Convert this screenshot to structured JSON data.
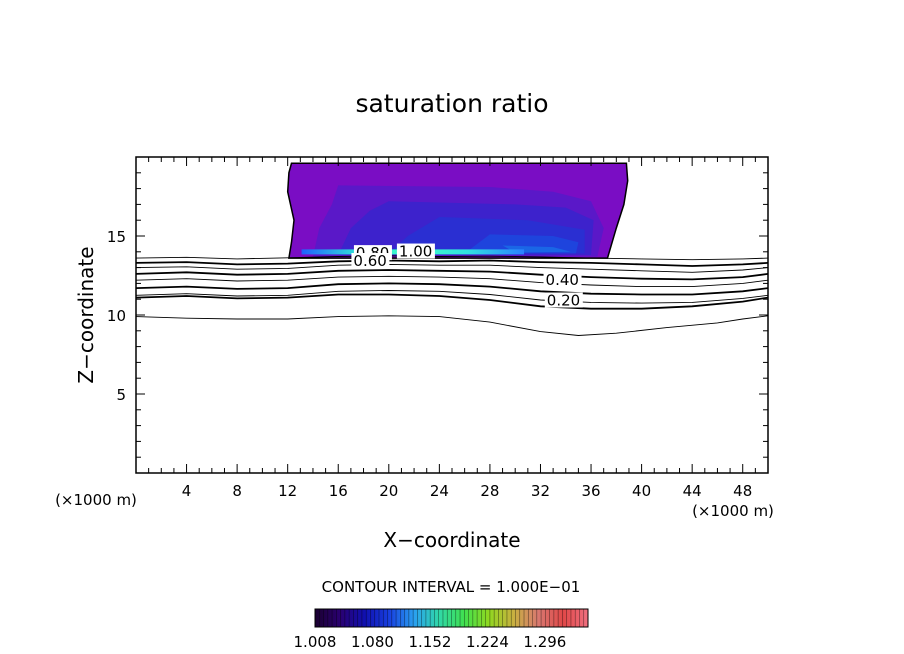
{
  "chart_data": {
    "type": "contour",
    "title": "saturation ratio",
    "xlabel": "X−coordinate",
    "ylabel": "Z−coordinate",
    "x_unit_label": "(×1000 m)",
    "y_unit_label": "(×1000 m)",
    "xlim": [
      0,
      50
    ],
    "ylim": [
      0,
      20
    ],
    "x_ticks": [
      4,
      8,
      12,
      16,
      20,
      24,
      28,
      32,
      36,
      40,
      44,
      48
    ],
    "y_ticks": [
      5,
      10,
      15
    ],
    "contour_interval_text": "CONTOUR INTERVAL = 1.000E−01",
    "contour_labels": [
      {
        "text": "1.00",
        "x": 20.8,
        "z": 13.7
      },
      {
        "text": "0.80",
        "x": 17.4,
        "z": 13.6
      },
      {
        "text": "0.60",
        "x": 17.2,
        "z": 13.1
      },
      {
        "text": "0.40",
        "x": 32.4,
        "z": 11.9
      },
      {
        "text": "0.20",
        "x": 32.5,
        "z": 10.6
      }
    ],
    "contour_lines": [
      {
        "level": 0.9,
        "bold": false,
        "points": [
          [
            0,
            13.6
          ],
          [
            4,
            13.65
          ],
          [
            8,
            13.55
          ],
          [
            12,
            13.62
          ],
          [
            16,
            13.7
          ],
          [
            20,
            13.75
          ],
          [
            24,
            13.7
          ],
          [
            28,
            13.72
          ],
          [
            32,
            13.68
          ],
          [
            36,
            13.6
          ],
          [
            40,
            13.55
          ],
          [
            44,
            13.5
          ],
          [
            48,
            13.55
          ],
          [
            50,
            13.6
          ]
        ]
      },
      {
        "level": 0.8,
        "bold": true,
        "points": [
          [
            0,
            13.3
          ],
          [
            4,
            13.35
          ],
          [
            8,
            13.2
          ],
          [
            12,
            13.25
          ],
          [
            16,
            13.4
          ],
          [
            20,
            13.45
          ],
          [
            24,
            13.4
          ],
          [
            28,
            13.45
          ],
          [
            32,
            13.35
          ],
          [
            36,
            13.3
          ],
          [
            40,
            13.2
          ],
          [
            44,
            13.1
          ],
          [
            48,
            13.2
          ],
          [
            50,
            13.3
          ]
        ]
      },
      {
        "level": 0.7,
        "bold": false,
        "points": [
          [
            0,
            13.0
          ],
          [
            4,
            13.05
          ],
          [
            8,
            12.9
          ],
          [
            12,
            12.95
          ],
          [
            16,
            13.15
          ],
          [
            20,
            13.2
          ],
          [
            24,
            13.15
          ],
          [
            28,
            13.15
          ],
          [
            32,
            13.0
          ],
          [
            36,
            12.9
          ],
          [
            40,
            12.8
          ],
          [
            44,
            12.7
          ],
          [
            48,
            12.85
          ],
          [
            50,
            13.0
          ]
        ]
      },
      {
        "level": 0.6,
        "bold": true,
        "points": [
          [
            0,
            12.6
          ],
          [
            4,
            12.7
          ],
          [
            8,
            12.55
          ],
          [
            12,
            12.6
          ],
          [
            16,
            12.8
          ],
          [
            20,
            12.85
          ],
          [
            24,
            12.8
          ],
          [
            28,
            12.75
          ],
          [
            32,
            12.55
          ],
          [
            36,
            12.4
          ],
          [
            40,
            12.3
          ],
          [
            44,
            12.25
          ],
          [
            48,
            12.4
          ],
          [
            50,
            12.6
          ]
        ]
      },
      {
        "level": 0.5,
        "bold": false,
        "points": [
          [
            0,
            12.2
          ],
          [
            4,
            12.3
          ],
          [
            8,
            12.15
          ],
          [
            12,
            12.2
          ],
          [
            16,
            12.4
          ],
          [
            20,
            12.45
          ],
          [
            24,
            12.4
          ],
          [
            28,
            12.3
          ],
          [
            32,
            12.05
          ],
          [
            36,
            11.9
          ],
          [
            40,
            11.8
          ],
          [
            44,
            11.8
          ],
          [
            48,
            12.0
          ],
          [
            50,
            12.2
          ]
        ]
      },
      {
        "level": 0.4,
        "bold": true,
        "points": [
          [
            0,
            11.7
          ],
          [
            4,
            11.8
          ],
          [
            8,
            11.65
          ],
          [
            12,
            11.7
          ],
          [
            16,
            11.95
          ],
          [
            20,
            12.0
          ],
          [
            24,
            11.95
          ],
          [
            28,
            11.8
          ],
          [
            32,
            11.5
          ],
          [
            36,
            11.35
          ],
          [
            40,
            11.3
          ],
          [
            44,
            11.3
          ],
          [
            48,
            11.5
          ],
          [
            50,
            11.7
          ]
        ]
      },
      {
        "level": 0.3,
        "bold": false,
        "points": [
          [
            0,
            11.25
          ],
          [
            4,
            11.35
          ],
          [
            8,
            11.2
          ],
          [
            12,
            11.25
          ],
          [
            16,
            11.5
          ],
          [
            20,
            11.55
          ],
          [
            24,
            11.5
          ],
          [
            28,
            11.3
          ],
          [
            32,
            10.95
          ],
          [
            36,
            10.8
          ],
          [
            40,
            10.75
          ],
          [
            44,
            10.8
          ],
          [
            48,
            11.05
          ],
          [
            50,
            11.25
          ]
        ]
      },
      {
        "level": 0.2,
        "bold": true,
        "points": [
          [
            0,
            11.1
          ],
          [
            4,
            11.2
          ],
          [
            8,
            11.05
          ],
          [
            12,
            11.1
          ],
          [
            16,
            11.3
          ],
          [
            20,
            11.3
          ],
          [
            24,
            11.2
          ],
          [
            28,
            10.95
          ],
          [
            32,
            10.55
          ],
          [
            36,
            10.4
          ],
          [
            40,
            10.4
          ],
          [
            44,
            10.55
          ],
          [
            48,
            10.85
          ],
          [
            50,
            11.1
          ]
        ]
      },
      {
        "level": 0.1,
        "bold": false,
        "points": [
          [
            0,
            9.9
          ],
          [
            4,
            9.8
          ],
          [
            8,
            9.75
          ],
          [
            12,
            9.75
          ],
          [
            16,
            9.9
          ],
          [
            20,
            9.95
          ],
          [
            24,
            9.9
          ],
          [
            28,
            9.55
          ],
          [
            32,
            8.95
          ],
          [
            35,
            8.7
          ],
          [
            38,
            8.85
          ],
          [
            42,
            9.2
          ],
          [
            46,
            9.5
          ],
          [
            48,
            9.75
          ],
          [
            50,
            9.95
          ]
        ]
      }
    ],
    "cloud_region": {
      "outline": [
        [
          12.3,
          19.6
        ],
        [
          38.8,
          19.6
        ],
        [
          38.9,
          18.5
        ],
        [
          38.6,
          17.0
        ],
        [
          38.0,
          15.5
        ],
        [
          37.3,
          13.6
        ],
        [
          12.1,
          13.6
        ],
        [
          12.3,
          14.6
        ],
        [
          12.5,
          16.0
        ],
        [
          12.0,
          17.8
        ],
        [
          12.1,
          19.0
        ]
      ],
      "shading": [
        {
          "color": "#7a0dc4",
          "outline": [
            [
              12.3,
              19.6
            ],
            [
              38.8,
              19.6
            ],
            [
              38.9,
              18.5
            ],
            [
              38.6,
              17.0
            ],
            [
              38.0,
              15.5
            ],
            [
              37.3,
              13.6
            ],
            [
              12.1,
              13.6
            ],
            [
              12.3,
              14.6
            ],
            [
              12.5,
              16.0
            ],
            [
              12.0,
              17.8
            ],
            [
              12.1,
              19.0
            ]
          ]
        },
        {
          "color": "#5a18c8",
          "outline": [
            [
              16,
              18.2
            ],
            [
              28,
              18.1
            ],
            [
              33,
              17.8
            ],
            [
              36,
              17.2
            ],
            [
              37.0,
              15.5
            ],
            [
              36.5,
              13.7
            ],
            [
              14,
              13.7
            ],
            [
              14.5,
              15.5
            ],
            [
              15.5,
              17.0
            ]
          ]
        },
        {
          "color": "#3d22cc",
          "outline": [
            [
              20,
              17.2
            ],
            [
              30,
              17.0
            ],
            [
              34,
              16.8
            ],
            [
              36.2,
              16.0
            ],
            [
              36.0,
              13.8
            ],
            [
              16,
              13.8
            ],
            [
              17,
              15.5
            ],
            [
              18.5,
              16.6
            ]
          ]
        },
        {
          "color": "#2a2fd2",
          "outline": [
            [
              24,
              16.2
            ],
            [
              31,
              16.0
            ],
            [
              35.5,
              15.4
            ],
            [
              35.5,
              13.9
            ],
            [
              20,
              13.9
            ],
            [
              21.5,
              15.0
            ]
          ]
        },
        {
          "color": "#1e44dd",
          "outline": [
            [
              28,
              15.1
            ],
            [
              33,
              15.0
            ],
            [
              35.0,
              14.6
            ],
            [
              34.8,
              13.9
            ],
            [
              26,
              13.9
            ]
          ]
        },
        {
          "color": "#1a66e6",
          "outline": [
            [
              29,
              14.4
            ],
            [
              33,
              14.3
            ],
            [
              34.4,
              14.0
            ],
            [
              30,
              13.95
            ]
          ]
        }
      ],
      "bright_band": {
        "x_start": 13.1,
        "x_end": 30.7,
        "z": 13.9,
        "colors": [
          "#2060ff",
          "#30e0d8",
          "#40ffc8",
          "#30e0e0",
          "#2a80ff"
        ]
      }
    },
    "colorbar": {
      "tick_labels": [
        "1.008",
        "1.080",
        "1.152",
        "1.224",
        "1.296"
      ],
      "min": 1.008,
      "max": 1.35,
      "colors": [
        "#1a0030",
        "#2a0070",
        "#1010b0",
        "#1840e0",
        "#2aa0f0",
        "#30d8a8",
        "#40e050",
        "#90d820",
        "#c8b040",
        "#d87870",
        "#e04848",
        "#f07080"
      ]
    }
  }
}
